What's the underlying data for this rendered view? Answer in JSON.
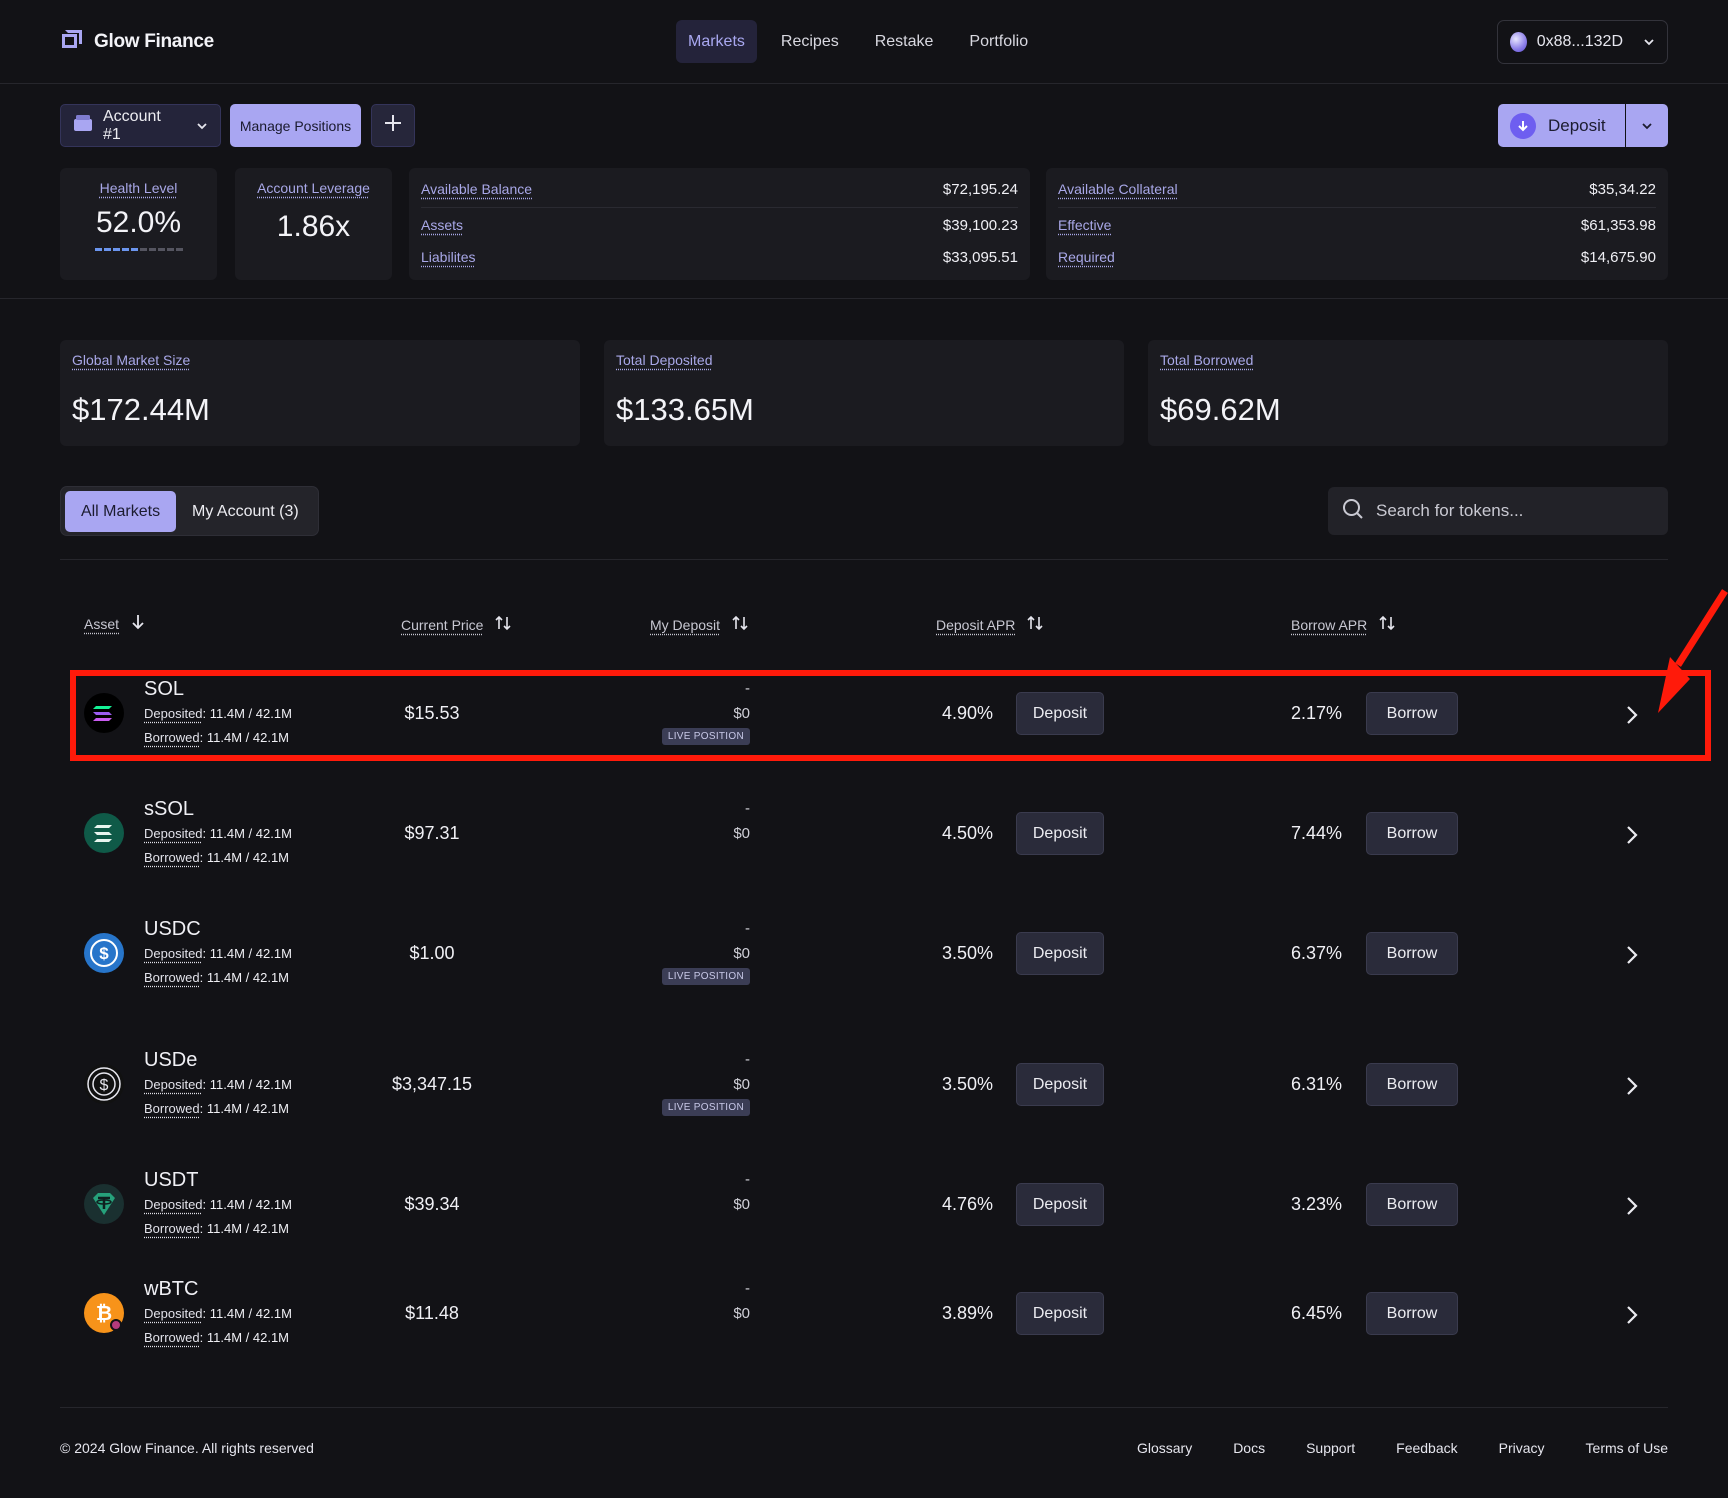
{
  "brand": {
    "name": "Glow Finance"
  },
  "nav": {
    "items": [
      "Markets",
      "Recipes",
      "Restake",
      "Portfolio"
    ],
    "active": "Markets"
  },
  "wallet": {
    "address": "0x88...132D"
  },
  "account": {
    "selector_label": "Account #1",
    "manage_label": "Manage Positions",
    "deposit_label": "Deposit"
  },
  "stats": {
    "health_label": "Health Level",
    "health_value": "52.0%",
    "health_segments_on": 5,
    "health_segments_total": 10,
    "leverage_label": "Account Leverage",
    "leverage_value": "1.86x",
    "balance": [
      {
        "label": "Available Balance",
        "value": "$72,195.24"
      },
      {
        "label": "Assets",
        "value": "$39,100.23"
      },
      {
        "label": "Liabilites",
        "value": "$33,095.51"
      }
    ],
    "collateral": [
      {
        "label": "Available Collateral",
        "value": "$35,34.22"
      },
      {
        "label": "Effective",
        "value": "$61,353.98"
      },
      {
        "label": "Required",
        "value": "$14,675.90"
      }
    ]
  },
  "market_totals": [
    {
      "label": "Global Market Size",
      "value": "$172.44M"
    },
    {
      "label": "Total Deposited",
      "value": "$133.65M"
    },
    {
      "label": "Total Borrowed",
      "value": "$69.62M"
    }
  ],
  "tabs": {
    "all": "All Markets",
    "mine": "My Account (3)"
  },
  "search": {
    "placeholder": "Search for tokens..."
  },
  "table": {
    "headers": {
      "asset": "Asset",
      "price": "Current Price",
      "deposit": "My Deposit",
      "deposit_apr": "Deposit APR",
      "borrow_apr": "Borrow APR"
    },
    "deposit_btn": "Deposit",
    "borrow_btn": "Borrow",
    "deposited_label": "Deposited",
    "borrowed_label": "Borrowed",
    "live_label": "LIVE POSITION",
    "rows": [
      {
        "symbol": "SOL",
        "deposited": ": 11.4M / 42.1M",
        "borrowed": ": 11.4M / 42.1M",
        "price": "$15.53",
        "my_dep_top": "-",
        "my_dep": "$0",
        "live": true,
        "deposit_apr": "4.90%",
        "borrow_apr": "2.17%"
      },
      {
        "symbol": "sSOL",
        "deposited": ": 11.4M / 42.1M",
        "borrowed": ": 11.4M / 42.1M",
        "price": "$97.31",
        "my_dep_top": "-",
        "my_dep": "$0",
        "live": false,
        "deposit_apr": "4.50%",
        "borrow_apr": "7.44%"
      },
      {
        "symbol": "USDC",
        "deposited": ": 11.4M / 42.1M",
        "borrowed": ": 11.4M / 42.1M",
        "price": "$1.00",
        "my_dep_top": "-",
        "my_dep": "$0",
        "live": true,
        "deposit_apr": "3.50%",
        "borrow_apr": "6.37%"
      },
      {
        "symbol": "USDe",
        "deposited": ": 11.4M / 42.1M",
        "borrowed": ": 11.4M / 42.1M",
        "price": "$3,347.15",
        "my_dep_top": "-",
        "my_dep": "$0",
        "live": true,
        "deposit_apr": "3.50%",
        "borrow_apr": "6.31%"
      },
      {
        "symbol": "USDT",
        "deposited": ": 11.4M / 42.1M",
        "borrowed": ": 11.4M / 42.1M",
        "price": "$39.34",
        "my_dep_top": "-",
        "my_dep": "$0",
        "live": false,
        "deposit_apr": "4.76%",
        "borrow_apr": "3.23%"
      },
      {
        "symbol": "wBTC",
        "deposited": ": 11.4M / 42.1M",
        "borrowed": ": 11.4M / 42.1M",
        "price": "$11.48",
        "my_dep_top": "-",
        "my_dep": "$0",
        "live": false,
        "deposit_apr": "3.89%",
        "borrow_apr": "6.45%"
      }
    ]
  },
  "footer": {
    "copyright": "© 2024 Glow Finance. All rights reserved",
    "links": [
      "Glossary",
      "Docs",
      "Support",
      "Feedback",
      "Privacy",
      "Terms of Use"
    ]
  },
  "colors": {
    "accent": "#a9a6f2",
    "annotation": "#ff1a0a",
    "background": "#121216"
  }
}
